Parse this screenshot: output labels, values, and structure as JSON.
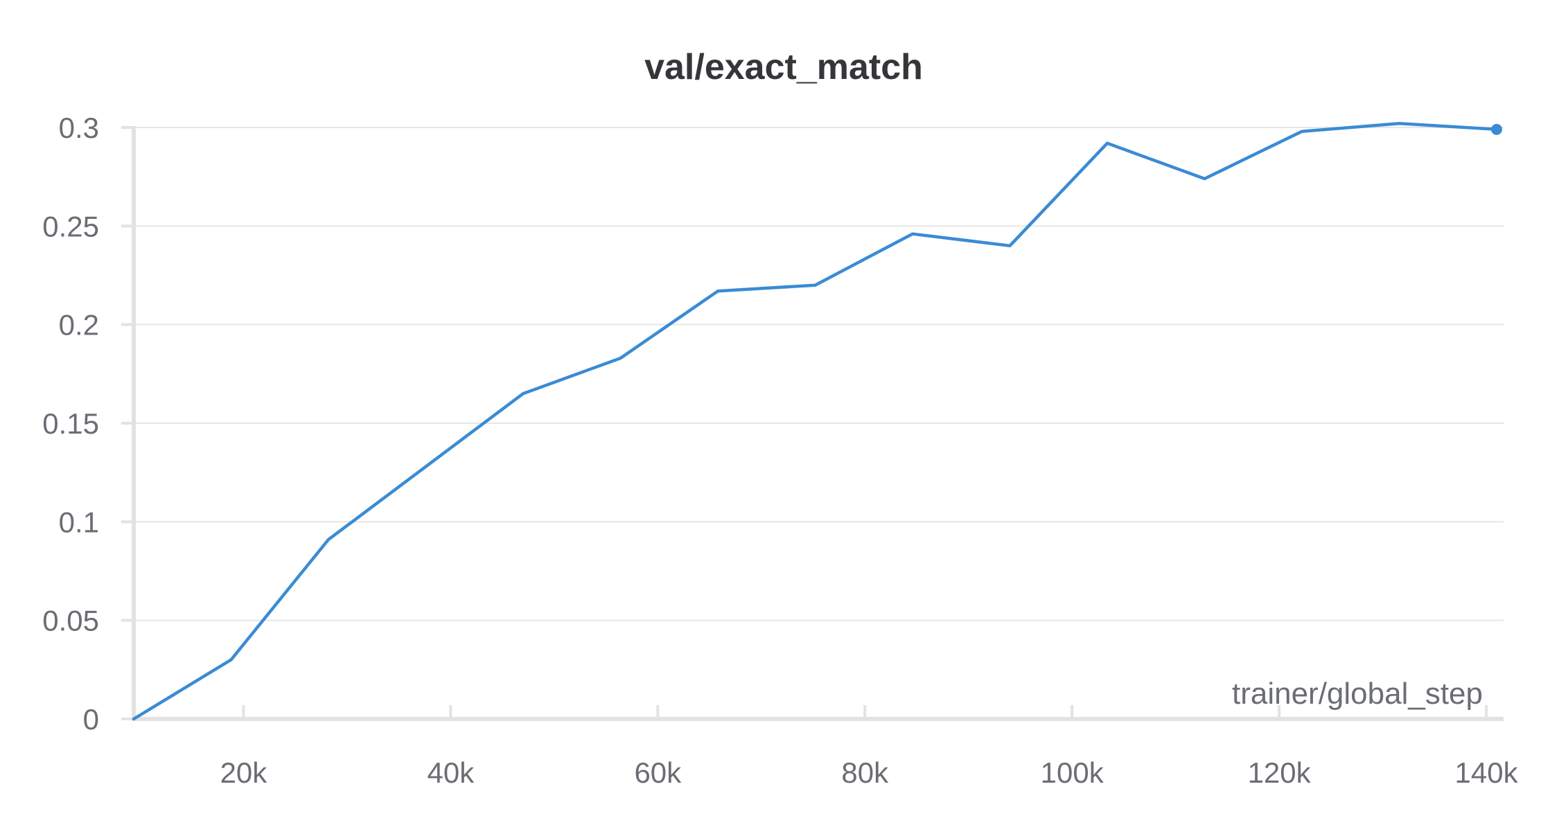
{
  "chart_data": {
    "type": "line",
    "title": "val/exact_match",
    "xlabel": "trainer/global_step",
    "ylabel": "",
    "x_tick_labels": [
      "20k",
      "40k",
      "60k",
      "80k",
      "100k",
      "120k",
      "140k"
    ],
    "y_tick_labels": [
      "0",
      "0.05",
      "0.1",
      "0.15",
      "0.2",
      "0.25",
      "0.3"
    ],
    "xlim": [
      9400,
      141000
    ],
    "ylim": [
      0,
      0.3
    ],
    "grid": true,
    "legend": "none",
    "series": [
      {
        "color": "#3a8bd4",
        "x": [
          9400,
          18800,
          28200,
          47000,
          56400,
          65800,
          75200,
          84600,
          94000,
          103400,
          112800,
          122200,
          131600,
          141000
        ],
        "y": [
          0.0,
          0.03,
          0.091,
          0.165,
          0.183,
          0.217,
          0.22,
          0.246,
          0.24,
          0.292,
          0.274,
          0.298,
          0.302,
          0.299
        ]
      }
    ]
  }
}
